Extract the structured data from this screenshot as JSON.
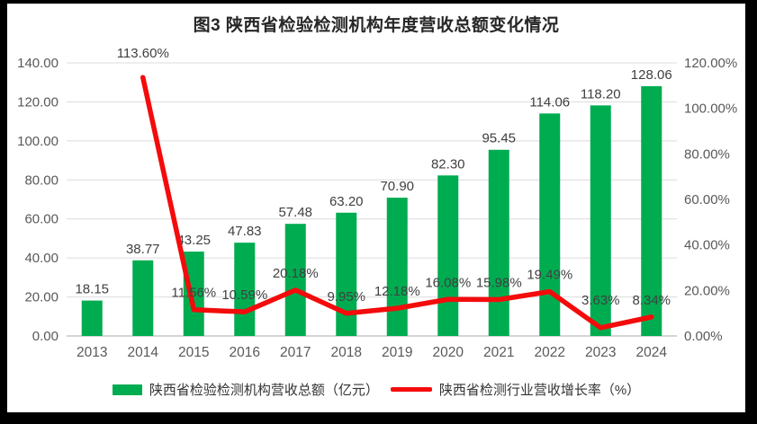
{
  "title": "图3  陕西省检验检测机构年度营收总额变化情况",
  "chart_data": {
    "type": "bar",
    "subtype": "combo-bar-line-dual-axis",
    "categories": [
      "2013",
      "2014",
      "2015",
      "2016",
      "2017",
      "2018",
      "2019",
      "2020",
      "2021",
      "2022",
      "2023",
      "2024"
    ],
    "series": [
      {
        "name": "陕西省检验检测机构营收总额（亿元）",
        "type": "bar",
        "axis": "left",
        "color": "#00AC50",
        "values": [
          18.15,
          38.77,
          43.25,
          47.83,
          57.48,
          63.2,
          70.9,
          82.3,
          95.45,
          114.06,
          118.2,
          128.06
        ],
        "labels": [
          "18.15",
          "38.77",
          "43.25",
          "47.83",
          "57.48",
          "63.20",
          "70.90",
          "82.30",
          "95.45",
          "114.06",
          "118.20",
          "128.06"
        ]
      },
      {
        "name": "陕西省检测行业营收增长率（%）",
        "type": "line",
        "axis": "right",
        "color": "#F40B0B",
        "values": [
          null,
          113.6,
          11.56,
          10.59,
          20.18,
          9.95,
          12.18,
          16.08,
          15.98,
          19.49,
          3.63,
          8.34
        ],
        "labels": [
          null,
          "113.60%",
          "11.56%",
          "10.59%",
          "20.18%",
          "9.95%",
          "12.18%",
          "16.08%",
          "15.98%",
          "19.49%",
          "3.63%",
          "8.34%"
        ]
      }
    ],
    "left_axis": {
      "min": 0,
      "max": 140,
      "step": 20,
      "tick_labels": [
        "0.00",
        "20.00",
        "40.00",
        "60.00",
        "80.00",
        "100.00",
        "120.00",
        "140.00"
      ]
    },
    "right_axis": {
      "min": 0,
      "max": 120,
      "step": 20,
      "tick_labels": [
        "0.00%",
        "20.00%",
        "40.00%",
        "60.00%",
        "80.00%",
        "100.00%",
        "120.00%"
      ]
    },
    "grid": true,
    "legend_position": "bottom"
  },
  "colors": {
    "bar": "#00AC50",
    "line": "#F40B0B",
    "grid": "#DCDCDC",
    "axis_line": "#C6C6C6",
    "axis_text": "#595959",
    "label_text": "#404040",
    "frame": "#000000",
    "background": "#FFFFFF"
  }
}
